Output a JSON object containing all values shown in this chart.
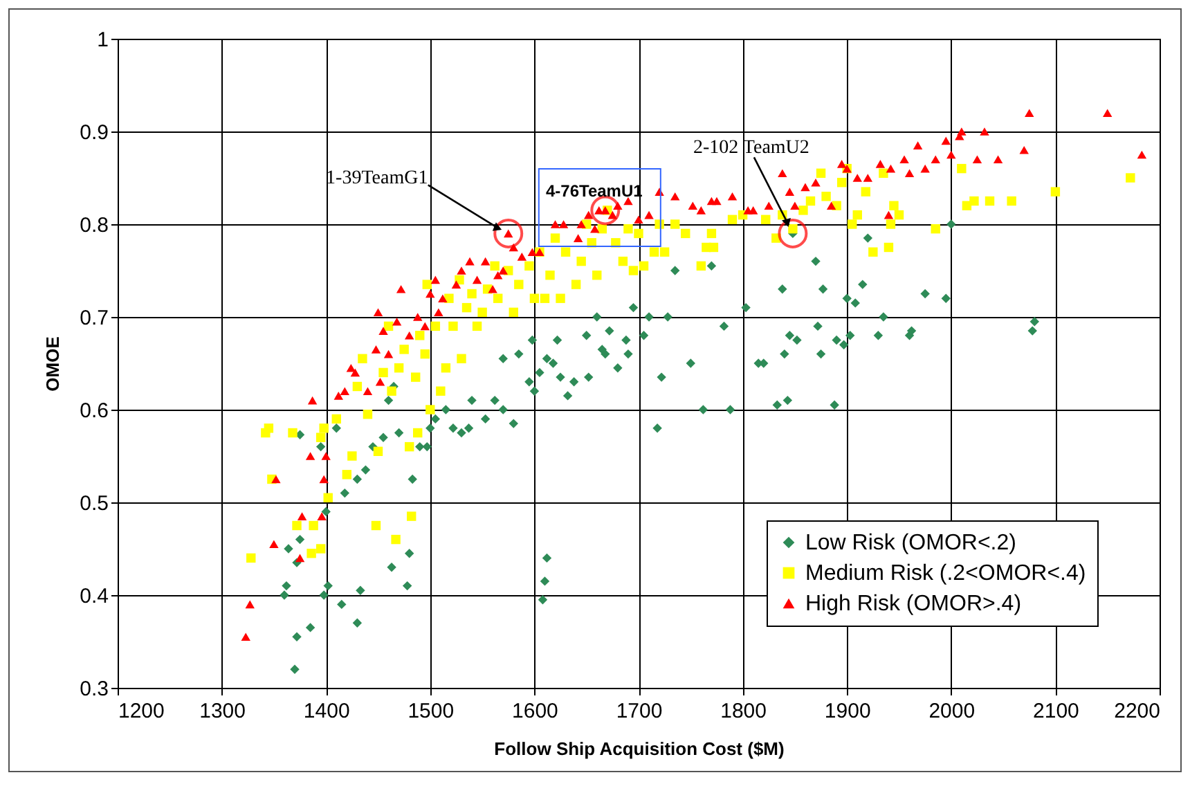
{
  "chart_data": {
    "type": "scatter",
    "xlabel": "Follow Ship Acquisition Cost ($M)",
    "ylabel": "OMOE",
    "xlim": [
      1200,
      2200
    ],
    "xticks": [
      1200,
      1300,
      1400,
      1500,
      1600,
      1700,
      1800,
      1900,
      2000,
      2100,
      2200
    ],
    "ylim": [
      0.3,
      1
    ],
    "yticks": [
      0.3,
      0.4,
      0.5,
      0.6,
      0.7,
      0.8,
      0.9,
      1
    ],
    "grid": true,
    "legend": "bottom right",
    "annotations": [
      {
        "text": "1-39TeamG1",
        "x": 1575,
        "y": 0.79
      },
      {
        "text": "4-76TeamU1",
        "x": 1668,
        "y": 0.815
      },
      {
        "text": "2-102 TeamU2",
        "x": 1848,
        "y": 0.79
      }
    ],
    "series": [
      {
        "name": "Low Risk (OMOR<.2)",
        "color": "#2e8b57",
        "marker": "diamond",
        "x": [
          1370,
          1372,
          1385,
          1360,
          1362,
          1398,
          1402,
          1415,
          1430,
          1433,
          1364,
          1372,
          1375,
          1400,
          1418,
          1430,
          1438,
          1445,
          1455,
          1463,
          1478,
          1480,
          1483,
          1470,
          1490,
          1497,
          1500,
          1505,
          1515,
          1522,
          1530,
          1537,
          1540,
          1553,
          1562,
          1570,
          1570,
          1580,
          1585,
          1595,
          1598,
          1600,
          1605,
          1608,
          1610,
          1612,
          1612,
          1618,
          1622,
          1625,
          1632,
          1638,
          1650,
          1652,
          1660,
          1665,
          1668,
          1672,
          1680,
          1688,
          1690,
          1695,
          1705,
          1710,
          1718,
          1722,
          1728,
          1735,
          1750,
          1762,
          1770,
          1782,
          1788,
          1803,
          1815,
          1820,
          1833,
          1838,
          1840,
          1843,
          1845,
          1848,
          1852,
          1870,
          1872,
          1875,
          1877,
          1888,
          1890,
          1897,
          1900,
          1903,
          1908,
          1915,
          1920,
          1930,
          1935,
          1960,
          1962,
          1975,
          1995,
          2000,
          2078,
          2080,
          1375,
          1395,
          1410,
          1460,
          1465
        ],
        "values": [
          0.32,
          0.355,
          0.365,
          0.4,
          0.41,
          0.4,
          0.41,
          0.39,
          0.37,
          0.405,
          0.45,
          0.435,
          0.46,
          0.49,
          0.51,
          0.525,
          0.535,
          0.56,
          0.57,
          0.43,
          0.41,
          0.445,
          0.525,
          0.575,
          0.56,
          0.56,
          0.58,
          0.59,
          0.6,
          0.58,
          0.575,
          0.58,
          0.61,
          0.59,
          0.61,
          0.6,
          0.655,
          0.585,
          0.66,
          0.63,
          0.675,
          0.62,
          0.64,
          0.395,
          0.415,
          0.44,
          0.655,
          0.65,
          0.675,
          0.635,
          0.615,
          0.63,
          0.68,
          0.635,
          0.7,
          0.665,
          0.66,
          0.685,
          0.645,
          0.675,
          0.66,
          0.71,
          0.68,
          0.7,
          0.58,
          0.635,
          0.7,
          0.75,
          0.65,
          0.6,
          0.755,
          0.69,
          0.6,
          0.71,
          0.65,
          0.65,
          0.605,
          0.73,
          0.66,
          0.61,
          0.68,
          0.79,
          0.675,
          0.76,
          0.69,
          0.66,
          0.73,
          0.605,
          0.675,
          0.67,
          0.72,
          0.68,
          0.715,
          0.735,
          0.785,
          0.68,
          0.7,
          0.68,
          0.685,
          0.725,
          0.72,
          0.8,
          0.685,
          0.695,
          0.573,
          0.56,
          0.58,
          0.61,
          0.625
        ]
      },
      {
        "name": "Medium Risk (.2<OMOR<.4)",
        "color": "#ffff00",
        "marker": "square",
        "x": [
          1328,
          1342,
          1345,
          1348,
          1368,
          1372,
          1386,
          1388,
          1395,
          1395,
          1398,
          1402,
          1410,
          1420,
          1425,
          1430,
          1435,
          1440,
          1448,
          1450,
          1455,
          1460,
          1463,
          1467,
          1470,
          1475,
          1480,
          1482,
          1486,
          1488,
          1490,
          1495,
          1497,
          1500,
          1505,
          1510,
          1515,
          1518,
          1522,
          1528,
          1530,
          1535,
          1540,
          1545,
          1550,
          1555,
          1562,
          1565,
          1575,
          1580,
          1585,
          1595,
          1600,
          1605,
          1610,
          1615,
          1620,
          1625,
          1630,
          1640,
          1645,
          1650,
          1655,
          1660,
          1665,
          1670,
          1678,
          1685,
          1690,
          1695,
          1700,
          1705,
          1715,
          1720,
          1725,
          1735,
          1745,
          1760,
          1765,
          1770,
          1772,
          1790,
          1800,
          1822,
          1832,
          1838,
          1848,
          1858,
          1865,
          1875,
          1880,
          1890,
          1895,
          1900,
          1905,
          1910,
          1918,
          1925,
          1935,
          1940,
          1942,
          1945,
          1950,
          1985,
          2010,
          2015,
          2022,
          2037,
          2058,
          2100,
          2172
        ],
        "values": [
          0.44,
          0.575,
          0.58,
          0.525,
          0.575,
          0.475,
          0.445,
          0.475,
          0.45,
          0.57,
          0.58,
          0.505,
          0.59,
          0.53,
          0.55,
          0.625,
          0.655,
          0.595,
          0.475,
          0.555,
          0.64,
          0.69,
          0.62,
          0.46,
          0.645,
          0.665,
          0.56,
          0.485,
          0.635,
          0.575,
          0.68,
          0.66,
          0.735,
          0.6,
          0.69,
          0.62,
          0.645,
          0.72,
          0.69,
          0.74,
          0.655,
          0.71,
          0.725,
          0.69,
          0.705,
          0.73,
          0.755,
          0.72,
          0.75,
          0.705,
          0.735,
          0.755,
          0.72,
          0.77,
          0.72,
          0.745,
          0.785,
          0.72,
          0.77,
          0.735,
          0.76,
          0.8,
          0.78,
          0.745,
          0.795,
          0.815,
          0.78,
          0.76,
          0.795,
          0.75,
          0.79,
          0.755,
          0.77,
          0.8,
          0.77,
          0.8,
          0.79,
          0.755,
          0.775,
          0.79,
          0.775,
          0.805,
          0.81,
          0.805,
          0.785,
          0.81,
          0.795,
          0.815,
          0.825,
          0.855,
          0.83,
          0.82,
          0.845,
          0.86,
          0.8,
          0.81,
          0.835,
          0.77,
          0.855,
          0.775,
          0.8,
          0.82,
          0.81,
          0.795,
          0.86,
          0.82,
          0.825,
          0.825,
          0.825,
          0.835,
          0.85
        ]
      },
      {
        "name": "High Risk (OMOR>.4)",
        "color": "#ff0000",
        "marker": "triangle",
        "x": [
          1323,
          1327,
          1350,
          1352,
          1375,
          1377,
          1385,
          1387,
          1396,
          1398,
          1400,
          1412,
          1418,
          1424,
          1428,
          1440,
          1448,
          1450,
          1452,
          1455,
          1460,
          1468,
          1472,
          1480,
          1488,
          1495,
          1500,
          1505,
          1508,
          1512,
          1525,
          1530,
          1538,
          1545,
          1553,
          1560,
          1565,
          1570,
          1575,
          1580,
          1588,
          1598,
          1605,
          1620,
          1628,
          1642,
          1645,
          1652,
          1658,
          1662,
          1668,
          1675,
          1680,
          1690,
          1700,
          1710,
          1720,
          1735,
          1752,
          1760,
          1770,
          1775,
          1790,
          1805,
          1810,
          1825,
          1838,
          1845,
          1850,
          1860,
          1870,
          1885,
          1895,
          1900,
          1910,
          1920,
          1932,
          1942,
          1940,
          1955,
          1960,
          1968,
          1975,
          1985,
          1995,
          2000,
          2008,
          2010,
          2025,
          2032,
          2045,
          2070,
          2075,
          2150,
          2183
        ],
        "values": [
          0.355,
          0.39,
          0.455,
          0.525,
          0.44,
          0.485,
          0.55,
          0.61,
          0.485,
          0.525,
          0.55,
          0.615,
          0.62,
          0.645,
          0.64,
          0.62,
          0.665,
          0.705,
          0.63,
          0.685,
          0.66,
          0.695,
          0.73,
          0.68,
          0.7,
          0.69,
          0.725,
          0.74,
          0.705,
          0.72,
          0.735,
          0.75,
          0.76,
          0.74,
          0.76,
          0.73,
          0.745,
          0.75,
          0.79,
          0.775,
          0.765,
          0.77,
          0.77,
          0.8,
          0.8,
          0.785,
          0.8,
          0.81,
          0.795,
          0.815,
          0.815,
          0.81,
          0.82,
          0.825,
          0.805,
          0.81,
          0.835,
          0.83,
          0.82,
          0.815,
          0.825,
          0.825,
          0.83,
          0.815,
          0.815,
          0.82,
          0.855,
          0.835,
          0.82,
          0.84,
          0.845,
          0.82,
          0.865,
          0.86,
          0.85,
          0.85,
          0.865,
          0.86,
          0.81,
          0.87,
          0.855,
          0.885,
          0.86,
          0.87,
          0.89,
          0.875,
          0.895,
          0.9,
          0.87,
          0.9,
          0.87,
          0.88,
          0.92,
          0.92,
          0.875
        ]
      }
    ]
  }
}
